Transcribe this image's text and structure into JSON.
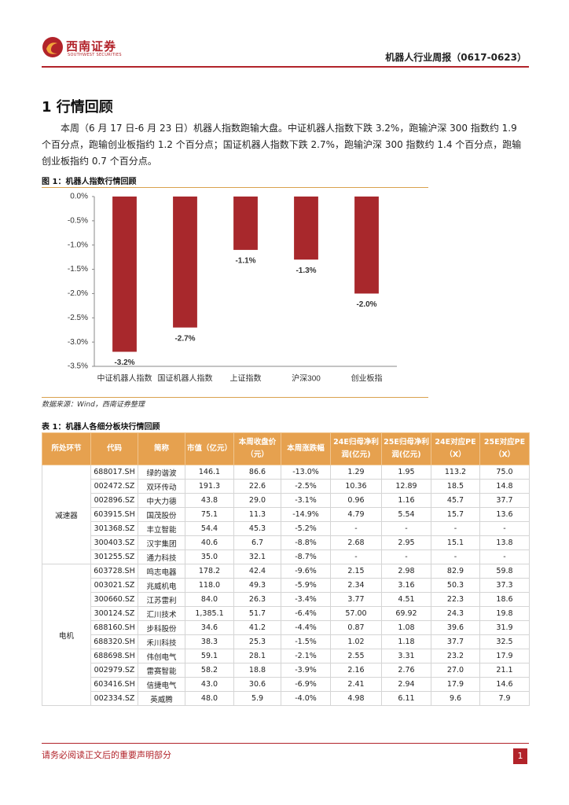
{
  "header": {
    "brand": "西南证券",
    "brand_en": "SOUTHWEST SECURITIES",
    "report_title": "机器人行业周报（0617-0623）"
  },
  "section": {
    "heading": "1 行情回顾",
    "paragraph": "本周（6 月 17 日-6 月 23 日）机器人指数跑输大盘。中证机器人指数下跌 3.2%，跑输沪深 300 指数约 1.9 个百分点，跑输创业板指约 1.2 个百分点；国证机器人指数下跌 2.7%，跑输沪深 300 指数约 1.4 个百分点，跑输创业板指约 0.7 个百分点。"
  },
  "figure": {
    "caption": "图 1：机器人指数行情回顾",
    "chart": {
      "type": "bar",
      "categories": [
        "中证机器人指数",
        "国证机器人指数",
        "上证指数",
        "沪深300",
        "创业板指"
      ],
      "values": [
        -3.2,
        -2.7,
        -1.1,
        -1.3,
        -2.0
      ],
      "value_labels": [
        "-3.2%",
        "-2.7%",
        "-1.1%",
        "-1.3%",
        "-2.0%"
      ],
      "color": "#a8282c",
      "ylim": [
        0,
        -3.5
      ],
      "yticks": [
        {
          "value": 0,
          "label": "0.0%"
        },
        {
          "value": -0.5,
          "label": "-0.5%"
        },
        {
          "value": -1,
          "label": "-1.0%"
        },
        {
          "value": -1.5,
          "label": "-1.5%"
        },
        {
          "value": -2,
          "label": "-2.0%"
        },
        {
          "value": -2.5,
          "label": "-2.5%"
        },
        {
          "value": -3,
          "label": "-3.0%"
        },
        {
          "value": -3.5,
          "label": "-3.5%"
        }
      ],
      "grid": false
    },
    "source": "数据来源：Wind，西南证券整理"
  },
  "table": {
    "caption": "表 1：机器人各细分板块行情回顾",
    "header": [
      "所处环节",
      "代码",
      "简称",
      "市值（亿元）",
      "本周收盘价（元）",
      "本周涨跌幅",
      "24E归母净利润(亿元)",
      "25E归母净利润(亿元)",
      "24E对应PE（X）",
      "25E对应PE（X）"
    ],
    "groups": [
      {
        "segment": "减速器",
        "rows": [
          [
            "688017.SH",
            "绿的谐波",
            "146.1",
            "86.6",
            "-13.0%",
            "1.29",
            "1.95",
            "113.2",
            "75.0"
          ],
          [
            "002472.SZ",
            "双环传动",
            "191.3",
            "22.6",
            "-2.5%",
            "10.36",
            "12.89",
            "18.5",
            "14.8"
          ],
          [
            "002896.SZ",
            "中大力德",
            "43.8",
            "29.0",
            "-3.1%",
            "0.96",
            "1.16",
            "45.7",
            "37.7"
          ],
          [
            "603915.SH",
            "国茂股份",
            "75.1",
            "11.3",
            "-14.9%",
            "4.79",
            "5.54",
            "15.7",
            "13.6"
          ],
          [
            "301368.SZ",
            "丰立智能",
            "54.4",
            "45.3",
            "-5.2%",
            "-",
            "-",
            "-",
            "-"
          ],
          [
            "300403.SZ",
            "汉宇集团",
            "40.6",
            "6.7",
            "-8.8%",
            "2.68",
            "2.95",
            "15.1",
            "13.8"
          ],
          [
            "301255.SZ",
            "通力科技",
            "35.0",
            "32.1",
            "-8.7%",
            "-",
            "-",
            "-",
            "-"
          ]
        ]
      },
      {
        "segment": "电机",
        "rows": [
          [
            "603728.SH",
            "鸣志电器",
            "178.2",
            "42.4",
            "-9.6%",
            "2.15",
            "2.98",
            "82.9",
            "59.8"
          ],
          [
            "003021.SZ",
            "兆威机电",
            "118.0",
            "49.3",
            "-5.9%",
            "2.34",
            "3.16",
            "50.3",
            "37.3"
          ],
          [
            "300660.SZ",
            "江苏雷利",
            "84.0",
            "26.3",
            "-3.4%",
            "3.77",
            "4.51",
            "22.3",
            "18.6"
          ],
          [
            "300124.SZ",
            "汇川技术",
            "1,385.1",
            "51.7",
            "-6.4%",
            "57.00",
            "69.92",
            "24.3",
            "19.8"
          ],
          [
            "688160.SH",
            "步科股份",
            "34.6",
            "41.2",
            "-4.4%",
            "0.87",
            "1.08",
            "39.6",
            "31.9"
          ],
          [
            "688320.SH",
            "禾川科技",
            "38.3",
            "25.3",
            "-1.5%",
            "1.02",
            "1.18",
            "37.7",
            "32.5"
          ],
          [
            "688698.SH",
            "伟创电气",
            "59.1",
            "28.1",
            "-2.1%",
            "2.55",
            "3.31",
            "23.2",
            "17.9"
          ],
          [
            "002979.SZ",
            "雷赛智能",
            "58.2",
            "18.8",
            "-3.9%",
            "2.16",
            "2.76",
            "27.0",
            "21.1"
          ],
          [
            "603416.SH",
            "信捷电气",
            "43.0",
            "30.6",
            "-6.9%",
            "2.41",
            "2.94",
            "17.9",
            "14.6"
          ],
          [
            "002334.SZ",
            "英威腾",
            "48.0",
            "5.9",
            "-4.0%",
            "4.98",
            "6.11",
            "9.6",
            "7.9"
          ]
        ]
      }
    ]
  },
  "footer": {
    "notice": "请务必阅读正文后的重要声明部分",
    "page": "1"
  }
}
